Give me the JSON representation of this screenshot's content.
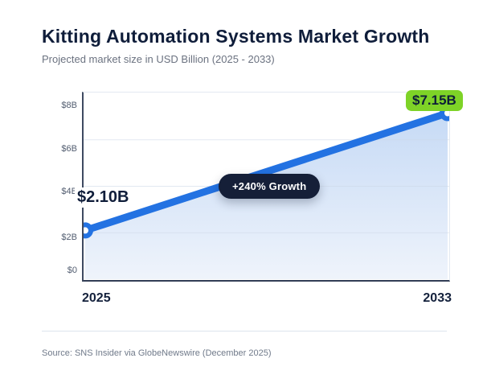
{
  "header": {
    "title": "Kitting Automation Systems Market Growth",
    "subtitle": "Projected market size in USD Billion (2025 - 2033)"
  },
  "chart_data": {
    "type": "area",
    "title": "Kitting Automation Systems Market Growth",
    "subtitle": "Projected market size in USD Billion (2025 - 2033)",
    "categories": [
      "2025",
      "2033"
    ],
    "series": [
      {
        "name": "Projected market size (USD Billion)",
        "values": [
          2.1,
          7.15
        ]
      }
    ],
    "ylim": [
      0,
      8
    ],
    "ytick_labels": [
      "$8B",
      "$6B",
      "$4B",
      "$2B",
      "$0"
    ],
    "y_gridline_values": [
      6,
      4,
      2
    ],
    "grid": true,
    "legend": false,
    "annotations": {
      "start_label": "$2.10B",
      "end_label": "$7.15B",
      "growth_badge": "+240% Growth"
    },
    "growth_percent": 240
  },
  "colors": {
    "line": "#2372e2",
    "area_top": "#c3d8f5",
    "area_bottom": "#eef3fb",
    "badge_green": "#7ed327",
    "pill_dark": "#151f38",
    "title_navy": "#0f1d3a",
    "muted_gray": "#6b7280",
    "gridline": "#ccd7e7"
  },
  "footer": {
    "source": "Source: SNS Insider via GlobeNewswire (December 2025)"
  }
}
